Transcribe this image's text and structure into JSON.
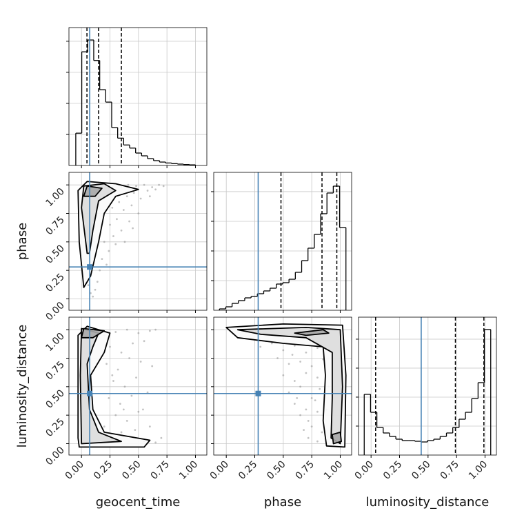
{
  "chart_data": [
    {
      "type": "histogram",
      "bins": [
        -0.05,
        0.0025,
        0.055,
        0.1075,
        0.16,
        0.2125,
        0.265,
        0.3175,
        0.37,
        0.4225,
        0.475,
        0.5275,
        0.58,
        0.6325,
        0.685,
        0.7375,
        0.79,
        0.8425,
        0.895,
        0.9475,
        1.0
      ],
      "counts": [
        520,
        1830,
        2020,
        1690,
        1220,
        1020,
        610,
        440,
        330,
        280,
        200,
        155,
        110,
        78,
        55,
        40,
        30,
        22,
        15,
        10
      ],
      "quantiles": [
        0.048,
        0.15,
        0.35
      ],
      "truth": 0.072,
      "color": "#000000",
      "truth_color": "#4682b4",
      "xlim": [
        -0.11,
        1.1
      ],
      "ylim": [
        0,
        2220
      ],
      "xticks": [
        0,
        0.25,
        0.5,
        0.75,
        1
      ],
      "yticks": [
        500,
        1000,
        1500,
        2000
      ],
      "grid": true
    },
    {
      "type": "scatter",
      "ylabel": "phase",
      "points": {
        "x": [
          0.22,
          0.3,
          0.35,
          0.41,
          0.48,
          0.55,
          0.62,
          0.68,
          0.27,
          0.33,
          0.4,
          0.46,
          0.52,
          0.58,
          0.25,
          0.31,
          0.37,
          0.44,
          0.5,
          0.2,
          0.28,
          0.35,
          0.42,
          0.18,
          0.24,
          0.3,
          0.16,
          0.22,
          0.14,
          0.12,
          0.6,
          0.65,
          0.72,
          0.45,
          0.38,
          0.1,
          0.08,
          0.06
        ],
        "y": [
          0.9,
          0.95,
          0.98,
          1.0,
          0.99,
          1.0,
          0.98,
          1.0,
          0.8,
          0.85,
          0.9,
          0.93,
          0.88,
          0.95,
          0.65,
          0.7,
          0.78,
          0.82,
          0.75,
          0.5,
          0.55,
          0.6,
          0.68,
          0.35,
          0.42,
          0.48,
          0.25,
          0.3,
          0.15,
          0.08,
          0.9,
          0.96,
          0.99,
          0.62,
          0.5,
          0.02,
          0.05,
          0.12
        ]
      },
      "contours": [
        {
          "x": [
            0.02,
            -0.02,
            -0.03,
            0.05,
            0.3,
            0.5,
            0.3,
            0.2,
            0.15,
            0.08
          ],
          "y": [
            0.1,
            0.5,
            0.95,
            1.03,
            1.01,
            0.96,
            0.9,
            0.75,
            0.5,
            0.2
          ]
        },
        {
          "x": [
            0.05,
            0.0,
            0.02,
            0.2,
            0.3,
            0.15,
            0.1,
            0.07
          ],
          "y": [
            0.4,
            0.8,
            0.99,
            1.01,
            0.95,
            0.86,
            0.6,
            0.4
          ]
        },
        {
          "x": [
            0.02,
            0.05,
            0.18,
            0.12
          ],
          "y": [
            0.9,
            0.99,
            0.97,
            0.9
          ]
        }
      ],
      "truth": {
        "x": 0.072,
        "y": 0.28
      },
      "color": "#000000",
      "truth_color": "#4682b4",
      "xlim": [
        -0.11,
        1.1
      ],
      "ylim": [
        -0.1,
        1.11
      ],
      "xticks": [
        0,
        0.25,
        0.5,
        0.75,
        1
      ],
      "yticks": [
        {
          "value": 0,
          "label": "0.00"
        },
        {
          "value": 0.25,
          "label": "0.25"
        },
        {
          "value": 0.5,
          "label": "0.50"
        },
        {
          "value": 0.75,
          "label": "0.75"
        },
        {
          "value": 1,
          "label": "1.00"
        }
      ],
      "grid": true
    },
    {
      "type": "histogram",
      "bins": [
        -0.06,
        -0.0045,
        0.051,
        0.1065,
        0.162,
        0.2175,
        0.273,
        0.3285,
        0.384,
        0.4395,
        0.495,
        0.5505,
        0.606,
        0.6615,
        0.717,
        0.7725,
        0.828,
        0.8835,
        0.939,
        0.9945,
        1.05
      ],
      "counts": [
        23,
        58,
        116,
        163,
        209,
        233,
        279,
        326,
        372,
        442,
        465,
        523,
        640,
        837,
        1047,
        1279,
        1628,
        1977,
        2093,
        1395
      ],
      "quantiles": [
        0.48,
        0.84,
        0.97
      ],
      "truth": 0.28,
      "color": "#000000",
      "truth_color": "#4682b4",
      "xlim": [
        -0.11,
        1.1
      ],
      "ylim": [
        0,
        2325
      ],
      "xticks": [
        0,
        0.25,
        0.5,
        0.75,
        1
      ],
      "yticks": [
        500,
        1000,
        1500,
        2000
      ],
      "grid": true
    },
    {
      "type": "scatter",
      "xlabel": "geocent_time",
      "ylabel": "luminosity_distance",
      "points": {
        "x": [
          0.2,
          0.3,
          0.4,
          0.5,
          0.6,
          0.65,
          0.25,
          0.35,
          0.45,
          0.55,
          0.22,
          0.32,
          0.42,
          0.52,
          0.62,
          0.28,
          0.38,
          0.48,
          0.58,
          0.24,
          0.34,
          0.44,
          0.54,
          0.3,
          0.4,
          0.5,
          0.6,
          0.7,
          0.2,
          0.35,
          0.45,
          0.55,
          0.65,
          0.27,
          0.37,
          0.47
        ],
        "y": [
          0.95,
          0.98,
          1.0,
          0.97,
          0.99,
          1.0,
          0.85,
          0.8,
          0.88,
          0.9,
          0.7,
          0.65,
          0.75,
          0.72,
          0.68,
          0.55,
          0.5,
          0.58,
          0.45,
          0.4,
          0.35,
          0.42,
          0.3,
          0.25,
          0.2,
          0.28,
          0.15,
          0.05,
          0.15,
          0.1,
          0.05,
          0.02,
          0.01,
          0.6,
          0.3,
          0.12
        ]
      },
      "contours": [
        {
          "x": [
            -0.02,
            0.55,
            0.6,
            0.2,
            0.1,
            0.08,
            0.2,
            0.25,
            0.05,
            -0.03,
            -0.03,
            -0.03
          ],
          "y": [
            -0.03,
            -0.03,
            0.03,
            0.1,
            0.3,
            0.6,
            0.8,
            0.97,
            1.03,
            0.95,
            0.5,
            0.05
          ]
        },
        {
          "x": [
            0.0,
            0.35,
            0.15,
            0.07,
            0.05,
            0.1,
            0.15,
            0.0,
            -0.01
          ],
          "y": [
            0.0,
            0.02,
            0.1,
            0.3,
            0.7,
            0.85,
            0.97,
            1.01,
            0.6
          ]
        },
        {
          "x": [
            0.0,
            0.02,
            0.2,
            0.1
          ],
          "y": [
            0.93,
            1.01,
            0.99,
            0.93
          ]
        }
      ],
      "truth": {
        "x": 0.072,
        "y": 0.44
      },
      "color": "#000000",
      "truth_color": "#4682b4",
      "xlim": [
        -0.11,
        1.1
      ],
      "ylim": [
        -0.1,
        1.11
      ],
      "xticks": [
        {
          "value": 0,
          "label": "0.00"
        },
        {
          "value": 0.25,
          "label": "0.25"
        },
        {
          "value": 0.5,
          "label": "0.50"
        },
        {
          "value": 0.75,
          "label": "0.75"
        },
        {
          "value": 1,
          "label": "1.00"
        }
      ],
      "yticks": [
        {
          "value": 0,
          "label": "0.00"
        },
        {
          "value": 0.25,
          "label": "0.25"
        },
        {
          "value": 0.5,
          "label": "0.50"
        },
        {
          "value": 0.75,
          "label": "0.75"
        },
        {
          "value": 1,
          "label": "1.00"
        }
      ],
      "grid": true
    },
    {
      "type": "scatter",
      "xlabel": "phase",
      "points": {
        "x": [
          0.3,
          0.4,
          0.5,
          0.6,
          0.7,
          0.8,
          0.45,
          0.55,
          0.65,
          0.75,
          0.85,
          0.5,
          0.6,
          0.7,
          0.8,
          0.55,
          0.65,
          0.75,
          0.82,
          0.6,
          0.7,
          0.78,
          0.65,
          0.72,
          0.8,
          0.68,
          0.75,
          0.84,
          0.72,
          0.8,
          0.35,
          0.5,
          0.9,
          0.88,
          0.62,
          0.58
        ],
        "y": [
          0.85,
          0.88,
          0.82,
          0.86,
          0.8,
          0.84,
          0.75,
          0.7,
          0.72,
          0.68,
          0.74,
          0.6,
          0.55,
          0.62,
          0.58,
          0.45,
          0.5,
          0.4,
          0.48,
          0.35,
          0.3,
          0.38,
          0.25,
          0.2,
          0.28,
          0.12,
          0.15,
          0.1,
          0.05,
          0.02,
          0.9,
          0.92,
          0.5,
          0.3,
          0.4,
          0.78
        ]
      },
      "contours": [
        {
          "x": [
            0.0,
            0.5,
            1.02,
            1.05,
            1.04,
            0.88,
            0.85,
            0.87,
            0.85,
            0.5,
            0.1
          ],
          "y": [
            1.02,
            1.05,
            1.04,
            0.6,
            -0.03,
            -0.02,
            0.2,
            0.6,
            0.85,
            0.88,
            0.93
          ]
        },
        {
          "x": [
            0.1,
            0.7,
            1.0,
            1.02,
            1.0,
            0.92,
            0.93,
            0.93,
            0.7,
            0.3
          ],
          "y": [
            1.0,
            1.02,
            1.0,
            0.5,
            0.0,
            0.05,
            0.4,
            0.8,
            0.93,
            0.96
          ]
        },
        {
          "x": [
            0.94,
            1.01,
            1.0,
            0.93
          ],
          "y": [
            0.0,
            0.02,
            0.1,
            0.08
          ]
        },
        {
          "x": [
            0.6,
            0.85,
            0.9,
            0.7
          ],
          "y": [
            0.97,
            1.0,
            0.97,
            0.95
          ]
        }
      ],
      "truth": {
        "x": 0.28,
        "y": 0.44
      },
      "color": "#000000",
      "truth_color": "#4682b4",
      "xlim": [
        -0.11,
        1.1
      ],
      "ylim": [
        -0.1,
        1.11
      ],
      "xticks": [
        {
          "value": 0,
          "label": "0.00"
        },
        {
          "value": 0.25,
          "label": "0.25"
        },
        {
          "value": 0.5,
          "label": "0.50"
        },
        {
          "value": 0.75,
          "label": "0.75"
        },
        {
          "value": 1,
          "label": "1.00"
        }
      ],
      "yticks": [
        0,
        0.25,
        0.5,
        0.75,
        1
      ],
      "grid": true
    },
    {
      "type": "histogram",
      "xlabel": "luminosity_distance",
      "bins": [
        -0.06,
        -0.0045,
        0.051,
        0.1065,
        0.162,
        0.2175,
        0.273,
        0.3285,
        0.384,
        0.4395,
        0.495,
        0.5505,
        0.606,
        0.6615,
        0.717,
        0.7725,
        0.828,
        0.8835,
        0.939,
        0.9945,
        1.05
      ],
      "counts": [
        1048,
        738,
        476,
        381,
        321,
        274,
        250,
        250,
        238,
        226,
        250,
        274,
        321,
        381,
        476,
        619,
        738,
        976,
        1250,
        2167
      ],
      "quantiles": [
        0.04,
        0.74,
        0.99
      ],
      "truth": 0.44,
      "color": "#000000",
      "truth_color": "#4682b4",
      "xlim": [
        -0.11,
        1.1
      ],
      "ylim": [
        0,
        2380
      ],
      "xticks": [
        {
          "value": 0,
          "label": "0.00"
        },
        {
          "value": 0.25,
          "label": "0.25"
        },
        {
          "value": 0.5,
          "label": "0.50"
        },
        {
          "value": 0.75,
          "label": "0.75"
        },
        {
          "value": 1,
          "label": "1.00"
        }
      ],
      "yticks": [
        500,
        1000,
        1500,
        2000
      ],
      "grid": true
    }
  ]
}
